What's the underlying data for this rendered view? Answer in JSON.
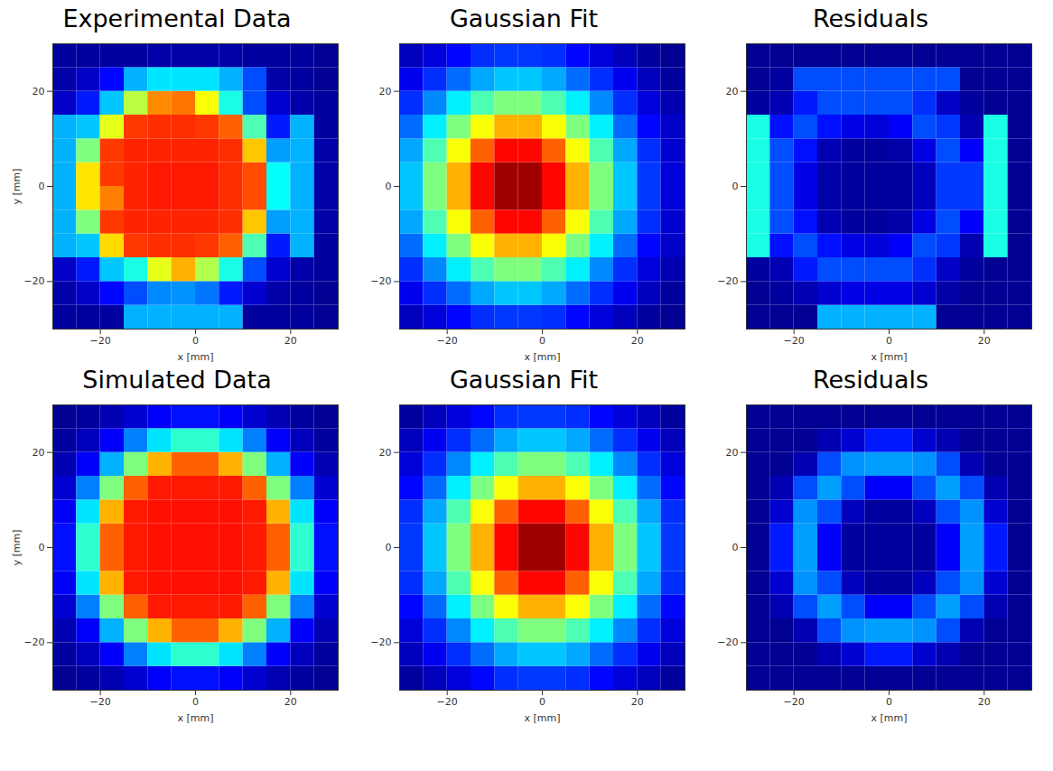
{
  "chart_data": [
    {
      "type": "heatmap",
      "title": "Experimental Data",
      "xlabel": "x [mm]",
      "ylabel": "y [mm]",
      "xlim": [
        -30,
        30
      ],
      "ylim": [
        -30,
        30
      ],
      "xticks": [
        -20,
        0,
        20
      ],
      "yticks": [
        -20,
        0,
        20
      ],
      "color_range": [
        0,
        1
      ],
      "x_edges": [
        -30,
        -25,
        -20,
        -15,
        -10,
        -5,
        0,
        5,
        10,
        15,
        20,
        25,
        30
      ],
      "y_edges": [
        -30,
        -25,
        -20,
        -15,
        -10,
        -5,
        0,
        5,
        10,
        15,
        20,
        25,
        30
      ],
      "cells": [
        [
          0.03,
          0.03,
          0.03,
          0.3,
          0.3,
          0.3,
          0.3,
          0.3,
          0.03,
          0.03,
          0.03,
          0.02
        ],
        [
          0.04,
          0.07,
          0.13,
          0.2,
          0.26,
          0.27,
          0.24,
          0.15,
          0.08,
          0.04,
          0.03,
          0.02
        ],
        [
          0.07,
          0.15,
          0.32,
          0.4,
          0.6,
          0.7,
          0.55,
          0.4,
          0.2,
          0.08,
          0.04,
          0.03
        ],
        [
          0.3,
          0.32,
          0.66,
          0.82,
          0.83,
          0.83,
          0.82,
          0.78,
          0.45,
          0.15,
          0.3,
          0.03
        ],
        [
          0.3,
          0.5,
          0.82,
          0.84,
          0.84,
          0.84,
          0.84,
          0.83,
          0.68,
          0.28,
          0.3,
          0.04
        ],
        [
          0.3,
          0.65,
          0.75,
          0.84,
          0.85,
          0.85,
          0.85,
          0.83,
          0.8,
          0.38,
          0.3,
          0.04
        ],
        [
          0.3,
          0.65,
          0.82,
          0.84,
          0.85,
          0.85,
          0.85,
          0.83,
          0.8,
          0.38,
          0.3,
          0.04
        ],
        [
          0.3,
          0.5,
          0.82,
          0.84,
          0.84,
          0.84,
          0.84,
          0.83,
          0.68,
          0.28,
          0.3,
          0.04
        ],
        [
          0.3,
          0.32,
          0.6,
          0.82,
          0.83,
          0.83,
          0.82,
          0.78,
          0.45,
          0.15,
          0.3,
          0.03
        ],
        [
          0.07,
          0.15,
          0.32,
          0.56,
          0.74,
          0.76,
          0.62,
          0.4,
          0.2,
          0.08,
          0.04,
          0.03
        ],
        [
          0.04,
          0.07,
          0.13,
          0.3,
          0.35,
          0.35,
          0.35,
          0.3,
          0.2,
          0.04,
          0.03,
          0.02
        ],
        [
          0.03,
          0.03,
          0.03,
          0.03,
          0.04,
          0.04,
          0.04,
          0.04,
          0.03,
          0.03,
          0.03,
          0.02
        ]
      ]
    },
    {
      "type": "heatmap",
      "title": "Gaussian Fit",
      "xlabel": "x [mm]",
      "xlim": [
        -30,
        30
      ],
      "ylim": [
        -30,
        30
      ],
      "xticks": [
        -20,
        0,
        20
      ],
      "yticks": [
        -20,
        0,
        20
      ],
      "color_range": [
        0,
        1
      ],
      "x_edges": [
        -30,
        -25,
        -20,
        -15,
        -10,
        -5,
        0,
        5,
        10,
        15,
        20,
        25,
        30
      ],
      "y_edges": [
        -30,
        -25,
        -20,
        -15,
        -10,
        -5,
        0,
        5,
        10,
        15,
        20,
        25,
        30
      ],
      "cells": [
        [
          0.06,
          0.09,
          0.13,
          0.17,
          0.18,
          0.18,
          0.17,
          0.13,
          0.09,
          0.06,
          0.03,
          0.02
        ],
        [
          0.11,
          0.17,
          0.23,
          0.29,
          0.32,
          0.32,
          0.29,
          0.23,
          0.17,
          0.11,
          0.06,
          0.03
        ],
        [
          0.17,
          0.26,
          0.36,
          0.45,
          0.5,
          0.5,
          0.45,
          0.36,
          0.26,
          0.17,
          0.09,
          0.05
        ],
        [
          0.23,
          0.36,
          0.5,
          0.62,
          0.7,
          0.7,
          0.62,
          0.5,
          0.36,
          0.23,
          0.13,
          0.07
        ],
        [
          0.29,
          0.45,
          0.62,
          0.78,
          0.87,
          0.87,
          0.78,
          0.62,
          0.45,
          0.29,
          0.17,
          0.08
        ],
        [
          0.32,
          0.5,
          0.7,
          0.87,
          0.97,
          0.97,
          0.87,
          0.7,
          0.5,
          0.32,
          0.18,
          0.09
        ],
        [
          0.32,
          0.5,
          0.7,
          0.87,
          0.97,
          0.97,
          0.87,
          0.7,
          0.5,
          0.32,
          0.18,
          0.09
        ],
        [
          0.29,
          0.45,
          0.62,
          0.78,
          0.87,
          0.87,
          0.78,
          0.62,
          0.45,
          0.29,
          0.17,
          0.08
        ],
        [
          0.23,
          0.36,
          0.5,
          0.62,
          0.7,
          0.7,
          0.62,
          0.5,
          0.36,
          0.23,
          0.13,
          0.07
        ],
        [
          0.17,
          0.26,
          0.36,
          0.45,
          0.5,
          0.5,
          0.45,
          0.36,
          0.26,
          0.17,
          0.09,
          0.05
        ],
        [
          0.11,
          0.17,
          0.23,
          0.29,
          0.32,
          0.32,
          0.29,
          0.23,
          0.17,
          0.11,
          0.06,
          0.03
        ],
        [
          0.06,
          0.09,
          0.13,
          0.17,
          0.18,
          0.18,
          0.17,
          0.13,
          0.09,
          0.06,
          0.03,
          0.02
        ]
      ]
    },
    {
      "type": "heatmap",
      "title": "Residuals",
      "xlabel": "x [mm]",
      "xlim": [
        -30,
        30
      ],
      "ylim": [
        -30,
        30
      ],
      "xticks": [
        -20,
        0,
        20
      ],
      "yticks": [
        -20,
        0,
        20
      ],
      "color_range": [
        0,
        1
      ],
      "x_edges": [
        -30,
        -25,
        -20,
        -15,
        -10,
        -5,
        0,
        5,
        10,
        15,
        20,
        25,
        30
      ],
      "y_edges": [
        -30,
        -25,
        -20,
        -15,
        -10,
        -5,
        0,
        5,
        10,
        15,
        20,
        25,
        30
      ],
      "cells": [
        [
          0.02,
          0.02,
          0.02,
          0.3,
          0.3,
          0.3,
          0.3,
          0.3,
          0.02,
          0.02,
          0.02,
          0.02
        ],
        [
          0.02,
          0.03,
          0.05,
          0.08,
          0.1,
          0.1,
          0.1,
          0.08,
          0.04,
          0.02,
          0.02,
          0.02
        ],
        [
          0.03,
          0.05,
          0.15,
          0.2,
          0.2,
          0.2,
          0.2,
          0.17,
          0.07,
          0.03,
          0.02,
          0.02
        ],
        [
          0.4,
          0.14,
          0.2,
          0.14,
          0.1,
          0.09,
          0.12,
          0.2,
          0.18,
          0.05,
          0.4,
          0.02
        ],
        [
          0.4,
          0.2,
          0.14,
          0.05,
          0.03,
          0.03,
          0.04,
          0.1,
          0.2,
          0.12,
          0.4,
          0.02
        ],
        [
          0.4,
          0.2,
          0.1,
          0.04,
          0.03,
          0.03,
          0.03,
          0.06,
          0.18,
          0.18,
          0.4,
          0.02
        ],
        [
          0.4,
          0.2,
          0.1,
          0.04,
          0.03,
          0.03,
          0.03,
          0.06,
          0.18,
          0.18,
          0.4,
          0.02
        ],
        [
          0.4,
          0.2,
          0.14,
          0.05,
          0.03,
          0.03,
          0.04,
          0.1,
          0.2,
          0.12,
          0.4,
          0.02
        ],
        [
          0.4,
          0.14,
          0.2,
          0.14,
          0.1,
          0.09,
          0.12,
          0.2,
          0.18,
          0.05,
          0.4,
          0.02
        ],
        [
          0.03,
          0.05,
          0.15,
          0.2,
          0.2,
          0.2,
          0.2,
          0.17,
          0.07,
          0.03,
          0.02,
          0.02
        ],
        [
          0.02,
          0.03,
          0.2,
          0.2,
          0.2,
          0.2,
          0.2,
          0.2,
          0.2,
          0.02,
          0.02,
          0.02
        ],
        [
          0.02,
          0.02,
          0.02,
          0.02,
          0.02,
          0.02,
          0.02,
          0.02,
          0.02,
          0.02,
          0.02,
          0.02
        ]
      ]
    },
    {
      "type": "heatmap",
      "title": "Simulated Data",
      "xlabel": "x [mm]",
      "ylabel": "y [mm]",
      "xlim": [
        -30,
        30
      ],
      "ylim": [
        -30,
        30
      ],
      "xticks": [
        -20,
        0,
        20
      ],
      "yticks": [
        -20,
        0,
        20
      ],
      "color_range": [
        0,
        1
      ],
      "x_edges": [
        -30,
        -25,
        -20,
        -15,
        -10,
        -5,
        0,
        5,
        10,
        15,
        20,
        25,
        30
      ],
      "y_edges": [
        -30,
        -25,
        -20,
        -15,
        -10,
        -5,
        0,
        5,
        10,
        15,
        20,
        25,
        30
      ],
      "cells": [
        [
          0.02,
          0.03,
          0.05,
          0.08,
          0.12,
          0.14,
          0.14,
          0.12,
          0.08,
          0.05,
          0.03,
          0.02
        ],
        [
          0.03,
          0.06,
          0.12,
          0.25,
          0.35,
          0.42,
          0.42,
          0.35,
          0.25,
          0.12,
          0.06,
          0.03
        ],
        [
          0.05,
          0.12,
          0.3,
          0.5,
          0.7,
          0.78,
          0.78,
          0.7,
          0.5,
          0.3,
          0.12,
          0.05
        ],
        [
          0.08,
          0.25,
          0.5,
          0.78,
          0.85,
          0.85,
          0.85,
          0.85,
          0.78,
          0.5,
          0.25,
          0.08
        ],
        [
          0.12,
          0.35,
          0.7,
          0.85,
          0.86,
          0.86,
          0.86,
          0.86,
          0.85,
          0.7,
          0.35,
          0.12
        ],
        [
          0.14,
          0.42,
          0.78,
          0.85,
          0.86,
          0.86,
          0.86,
          0.86,
          0.85,
          0.78,
          0.42,
          0.14
        ],
        [
          0.14,
          0.42,
          0.78,
          0.85,
          0.86,
          0.86,
          0.86,
          0.86,
          0.85,
          0.78,
          0.42,
          0.14
        ],
        [
          0.12,
          0.35,
          0.7,
          0.85,
          0.86,
          0.86,
          0.86,
          0.86,
          0.85,
          0.7,
          0.35,
          0.12
        ],
        [
          0.08,
          0.25,
          0.5,
          0.78,
          0.85,
          0.85,
          0.85,
          0.85,
          0.78,
          0.5,
          0.25,
          0.08
        ],
        [
          0.05,
          0.12,
          0.3,
          0.5,
          0.7,
          0.78,
          0.78,
          0.7,
          0.5,
          0.3,
          0.12,
          0.05
        ],
        [
          0.03,
          0.06,
          0.12,
          0.25,
          0.35,
          0.42,
          0.42,
          0.35,
          0.25,
          0.12,
          0.06,
          0.03
        ],
        [
          0.02,
          0.03,
          0.05,
          0.08,
          0.12,
          0.14,
          0.14,
          0.12,
          0.08,
          0.05,
          0.03,
          0.02
        ]
      ]
    },
    {
      "type": "heatmap",
      "title": "Gaussian Fit",
      "xlabel": "x [mm]",
      "xlim": [
        -30,
        30
      ],
      "ylim": [
        -30,
        30
      ],
      "xticks": [
        -20,
        0,
        20
      ],
      "yticks": [
        -20,
        0,
        20
      ],
      "color_range": [
        0,
        1
      ],
      "x_edges": [
        -30,
        -25,
        -20,
        -15,
        -10,
        -5,
        0,
        5,
        10,
        15,
        20,
        25,
        30
      ],
      "y_edges": [
        -30,
        -25,
        -20,
        -15,
        -10,
        -5,
        0,
        5,
        10,
        15,
        20,
        25,
        30
      ],
      "cells": [
        [
          0.03,
          0.06,
          0.09,
          0.13,
          0.17,
          0.18,
          0.18,
          0.17,
          0.13,
          0.09,
          0.06,
          0.03
        ],
        [
          0.06,
          0.11,
          0.17,
          0.23,
          0.29,
          0.32,
          0.32,
          0.29,
          0.23,
          0.17,
          0.11,
          0.06
        ],
        [
          0.09,
          0.17,
          0.26,
          0.36,
          0.45,
          0.5,
          0.5,
          0.45,
          0.36,
          0.26,
          0.17,
          0.09
        ],
        [
          0.13,
          0.23,
          0.36,
          0.5,
          0.62,
          0.7,
          0.7,
          0.62,
          0.5,
          0.36,
          0.23,
          0.13
        ],
        [
          0.17,
          0.29,
          0.45,
          0.62,
          0.78,
          0.87,
          0.87,
          0.78,
          0.62,
          0.45,
          0.29,
          0.17
        ],
        [
          0.18,
          0.32,
          0.5,
          0.7,
          0.87,
          0.97,
          0.97,
          0.87,
          0.7,
          0.5,
          0.32,
          0.18
        ],
        [
          0.18,
          0.32,
          0.5,
          0.7,
          0.87,
          0.97,
          0.97,
          0.87,
          0.7,
          0.5,
          0.32,
          0.18
        ],
        [
          0.17,
          0.29,
          0.45,
          0.62,
          0.78,
          0.87,
          0.87,
          0.78,
          0.62,
          0.45,
          0.29,
          0.17
        ],
        [
          0.13,
          0.23,
          0.36,
          0.5,
          0.62,
          0.7,
          0.7,
          0.62,
          0.5,
          0.36,
          0.23,
          0.13
        ],
        [
          0.09,
          0.17,
          0.26,
          0.36,
          0.45,
          0.5,
          0.5,
          0.45,
          0.36,
          0.26,
          0.17,
          0.09
        ],
        [
          0.06,
          0.11,
          0.17,
          0.23,
          0.29,
          0.32,
          0.32,
          0.29,
          0.23,
          0.17,
          0.11,
          0.06
        ],
        [
          0.03,
          0.06,
          0.09,
          0.13,
          0.17,
          0.18,
          0.18,
          0.17,
          0.13,
          0.09,
          0.06,
          0.03
        ]
      ]
    },
    {
      "type": "heatmap",
      "title": "Residuals",
      "xlabel": "x [mm]",
      "xlim": [
        -30,
        30
      ],
      "ylim": [
        -30,
        30
      ],
      "xticks": [
        -20,
        0,
        20
      ],
      "yticks": [
        -20,
        0,
        20
      ],
      "color_range": [
        0,
        1
      ],
      "x_edges": [
        -30,
        -25,
        -20,
        -15,
        -10,
        -5,
        0,
        5,
        10,
        15,
        20,
        25,
        30
      ],
      "y_edges": [
        -30,
        -25,
        -20,
        -15,
        -10,
        -5,
        0,
        5,
        10,
        15,
        20,
        25,
        30
      ],
      "cells": [
        [
          0.02,
          0.02,
          0.02,
          0.02,
          0.02,
          0.02,
          0.02,
          0.02,
          0.02,
          0.02,
          0.02,
          0.02
        ],
        [
          0.02,
          0.02,
          0.02,
          0.05,
          0.08,
          0.15,
          0.15,
          0.08,
          0.05,
          0.02,
          0.02,
          0.02
        ],
        [
          0.02,
          0.02,
          0.05,
          0.2,
          0.27,
          0.28,
          0.28,
          0.27,
          0.2,
          0.05,
          0.02,
          0.02
        ],
        [
          0.02,
          0.05,
          0.2,
          0.28,
          0.2,
          0.12,
          0.12,
          0.2,
          0.28,
          0.2,
          0.05,
          0.02
        ],
        [
          0.02,
          0.08,
          0.27,
          0.2,
          0.06,
          0.03,
          0.03,
          0.06,
          0.2,
          0.27,
          0.08,
          0.02
        ],
        [
          0.02,
          0.15,
          0.28,
          0.12,
          0.03,
          0.03,
          0.03,
          0.03,
          0.12,
          0.28,
          0.15,
          0.02
        ],
        [
          0.02,
          0.15,
          0.28,
          0.12,
          0.03,
          0.03,
          0.03,
          0.03,
          0.12,
          0.28,
          0.15,
          0.02
        ],
        [
          0.02,
          0.08,
          0.27,
          0.2,
          0.06,
          0.03,
          0.03,
          0.06,
          0.2,
          0.27,
          0.08,
          0.02
        ],
        [
          0.02,
          0.05,
          0.2,
          0.28,
          0.2,
          0.12,
          0.12,
          0.2,
          0.28,
          0.2,
          0.05,
          0.02
        ],
        [
          0.02,
          0.02,
          0.05,
          0.2,
          0.27,
          0.28,
          0.28,
          0.27,
          0.2,
          0.05,
          0.02,
          0.02
        ],
        [
          0.02,
          0.02,
          0.02,
          0.05,
          0.08,
          0.15,
          0.15,
          0.08,
          0.05,
          0.02,
          0.02,
          0.02
        ],
        [
          0.02,
          0.02,
          0.02,
          0.02,
          0.02,
          0.02,
          0.02,
          0.02,
          0.02,
          0.02,
          0.02,
          0.02
        ]
      ]
    }
  ]
}
